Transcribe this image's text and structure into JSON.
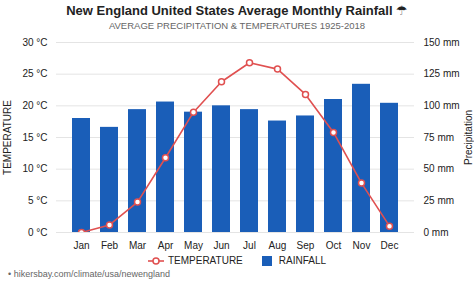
{
  "chart_data": {
    "type": "combo",
    "title": "New England United States Average Monthly Rainfall ☂",
    "subtitle": "AVERAGE PRECIPITATION & TEMPERATURES 1925-2018",
    "footer": "• hikersbay.com/climate/usa/newengland",
    "ylabel": "TEMPERATURE",
    "y2label": "Precipitation",
    "categories": [
      "Jan",
      "Feb",
      "Mar",
      "Apr",
      "May",
      "Jun",
      "Jul",
      "Aug",
      "Sep",
      "Oct",
      "Nov",
      "Dec"
    ],
    "series": [
      {
        "name": "TEMPERATURE",
        "type": "line",
        "color": "#e05050",
        "marker": "o",
        "values": [
          0.0,
          1.2,
          4.8,
          11.8,
          19.0,
          23.8,
          26.8,
          25.8,
          21.8,
          15.8,
          7.8,
          1.0
        ]
      },
      {
        "name": "RAINFALL",
        "type": "bar",
        "color": "#1a5eb8",
        "axis": "y2",
        "values": [
          90,
          83,
          97,
          103,
          95,
          100,
          97,
          88,
          92,
          105,
          117,
          102
        ]
      }
    ],
    "ylim": [
      0,
      30
    ],
    "yticks": [
      {
        "value": 0,
        "label": "0 °C"
      },
      {
        "value": 5,
        "label": "5 °C"
      },
      {
        "value": 10,
        "label": "10 °C"
      },
      {
        "value": 15,
        "label": "15 °C"
      },
      {
        "value": 20,
        "label": "20 °C"
      },
      {
        "value": 25,
        "label": "25 °C"
      },
      {
        "value": 30,
        "label": "30 °C"
      }
    ],
    "y2lim": [
      0,
      150
    ],
    "y2ticks": [
      {
        "value": 0,
        "label": "0 mm"
      },
      {
        "value": 25,
        "label": "25 mm"
      },
      {
        "value": 50,
        "label": "50 mm"
      },
      {
        "value": 75,
        "label": "75 mm"
      },
      {
        "value": 100,
        "label": "100 mm"
      },
      {
        "value": 125,
        "label": "125 mm"
      },
      {
        "value": 150,
        "label": "150 mm"
      }
    ],
    "grid": true,
    "legend": "bottom"
  }
}
